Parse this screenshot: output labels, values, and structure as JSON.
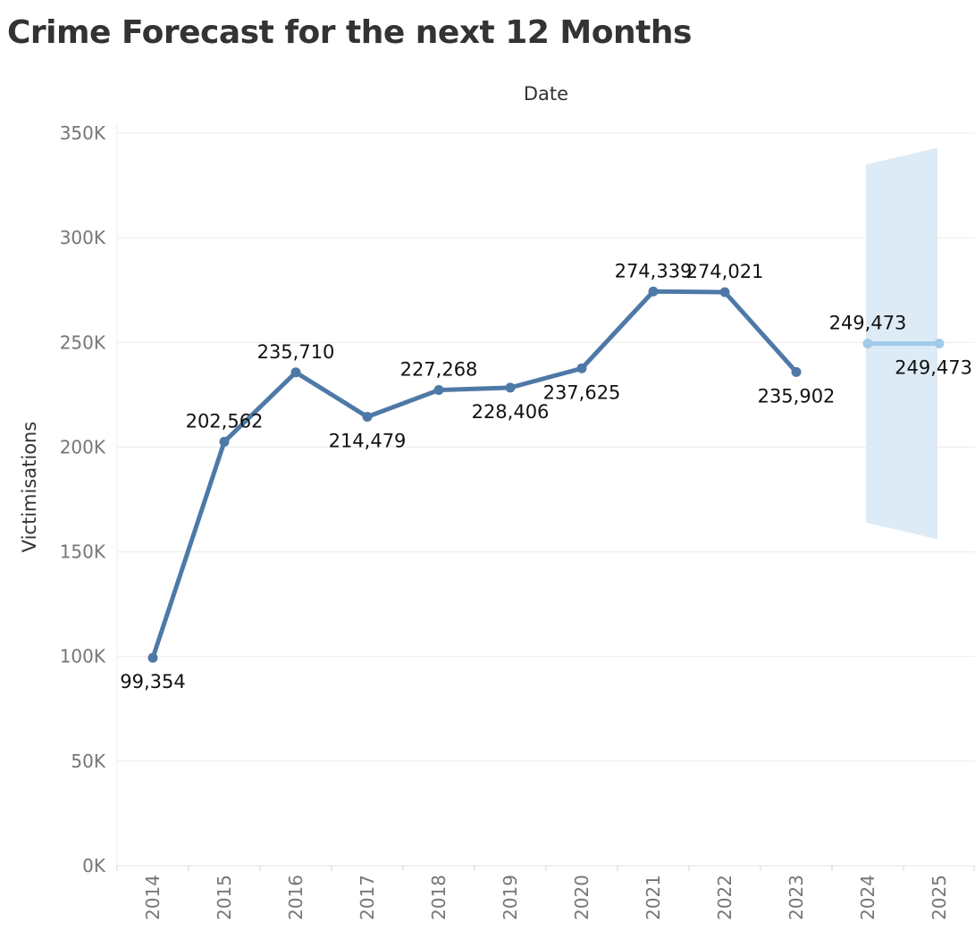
{
  "title": "Crime Forecast for the next 12 Months",
  "chart_data": {
    "type": "line",
    "title": "Crime Forecast for the next 12 Months",
    "xlabel": "Date",
    "ylabel": "Victimisations",
    "ylim": [
      0,
      350000
    ],
    "yticks": [
      0,
      50000,
      100000,
      150000,
      200000,
      250000,
      300000,
      350000
    ],
    "ytick_labels": [
      "0K",
      "50K",
      "100K",
      "150K",
      "200K",
      "250K",
      "300K",
      "350K"
    ],
    "categories": [
      "2014",
      "2015",
      "2016",
      "2017",
      "2018",
      "2019",
      "2020",
      "2021",
      "2022",
      "2023",
      "2024",
      "2025"
    ],
    "grid": "horizontal",
    "series": [
      {
        "role": "actual",
        "color": "#4e79a7",
        "points": [
          {
            "x": "2014",
            "y": 99354,
            "label": "99,354",
            "label_pos": "below"
          },
          {
            "x": "2015",
            "y": 202562,
            "label": "202,562",
            "label_pos": "above"
          },
          {
            "x": "2016",
            "y": 235710,
            "label": "235,710",
            "label_pos": "above"
          },
          {
            "x": "2017",
            "y": 214479,
            "label": "214,479",
            "label_pos": "below"
          },
          {
            "x": "2018",
            "y": 227268,
            "label": "227,268",
            "label_pos": "above"
          },
          {
            "x": "2019",
            "y": 228406,
            "label": "228,406",
            "label_pos": "below"
          },
          {
            "x": "2020",
            "y": 237625,
            "label": "237,625",
            "label_pos": "below"
          },
          {
            "x": "2021",
            "y": 274339,
            "label": "274,339",
            "label_pos": "above"
          },
          {
            "x": "2022",
            "y": 274021,
            "label": "274,021",
            "label_pos": "above"
          },
          {
            "x": "2023",
            "y": 235902,
            "label": "235,902",
            "label_pos": "below"
          }
        ]
      },
      {
        "role": "forecast",
        "color": "#a0cbe8",
        "points": [
          {
            "x": "2024",
            "y": 249473,
            "label": "249,473",
            "label_pos": "above"
          },
          {
            "x": "2025",
            "y": 249473,
            "label": "249,473",
            "label_pos": "below"
          }
        ]
      }
    ],
    "prediction_interval": {
      "color": "#ddebf6",
      "points": [
        {
          "x": "2024",
          "low": 164000,
          "high": 335000
        },
        {
          "x": "2025",
          "low": 156000,
          "high": 343000
        }
      ]
    }
  }
}
